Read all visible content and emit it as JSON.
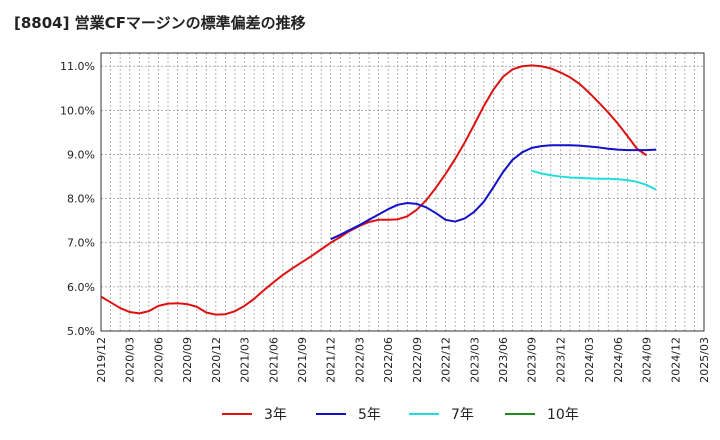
{
  "chart_data": {
    "type": "line",
    "title": "[8804]  営業CFマージンの標準偏差の推移",
    "xlabel": "",
    "ylabel": "",
    "x_ticks": [
      "2019/12",
      "2020/03",
      "2020/06",
      "2020/09",
      "2020/12",
      "2021/03",
      "2021/06",
      "2021/09",
      "2021/12",
      "2022/03",
      "2022/06",
      "2022/09",
      "2022/12",
      "2023/03",
      "2023/06",
      "2023/09",
      "2023/12",
      "2024/03",
      "2024/06",
      "2024/09",
      "2024/12",
      "2025/03"
    ],
    "y_ticks": [
      "5.0%",
      "6.0%",
      "7.0%",
      "8.0%",
      "9.0%",
      "10.0%",
      "11.0%"
    ],
    "ylim": [
      5.0,
      11.3
    ],
    "grid": true,
    "legend_position": "bottom",
    "x_unit": "month index from 2019/12",
    "series": [
      {
        "name": "3年",
        "color": "#dd1111",
        "points": [
          [
            0,
            5.78
          ],
          [
            1,
            5.65
          ],
          [
            2,
            5.52
          ],
          [
            3,
            5.43
          ],
          [
            4,
            5.4
          ],
          [
            5,
            5.45
          ],
          [
            6,
            5.57
          ],
          [
            7,
            5.62
          ],
          [
            8,
            5.63
          ],
          [
            9,
            5.61
          ],
          [
            10,
            5.55
          ],
          [
            11,
            5.42
          ],
          [
            12,
            5.37
          ],
          [
            13,
            5.38
          ],
          [
            14,
            5.45
          ],
          [
            15,
            5.57
          ],
          [
            16,
            5.73
          ],
          [
            17,
            5.92
          ],
          [
            18,
            6.1
          ],
          [
            19,
            6.27
          ],
          [
            20,
            6.42
          ],
          [
            21,
            6.56
          ],
          [
            22,
            6.7
          ],
          [
            23,
            6.85
          ],
          [
            24,
            7.0
          ],
          [
            25,
            7.13
          ],
          [
            26,
            7.27
          ],
          [
            27,
            7.38
          ],
          [
            28,
            7.47
          ],
          [
            29,
            7.52
          ],
          [
            30,
            7.52
          ],
          [
            31,
            7.53
          ],
          [
            32,
            7.6
          ],
          [
            33,
            7.75
          ],
          [
            34,
            7.97
          ],
          [
            35,
            8.25
          ],
          [
            36,
            8.56
          ],
          [
            37,
            8.9
          ],
          [
            38,
            9.27
          ],
          [
            39,
            9.68
          ],
          [
            40,
            10.1
          ],
          [
            41,
            10.47
          ],
          [
            42,
            10.76
          ],
          [
            43,
            10.93
          ],
          [
            44,
            11.0
          ],
          [
            45,
            11.02
          ],
          [
            46,
            11.0
          ],
          [
            47,
            10.95
          ],
          [
            48,
            10.86
          ],
          [
            49,
            10.75
          ],
          [
            50,
            10.6
          ],
          [
            51,
            10.4
          ],
          [
            52,
            10.18
          ],
          [
            53,
            9.95
          ],
          [
            54,
            9.7
          ],
          [
            55,
            9.42
          ],
          [
            56,
            9.13
          ],
          [
            57,
            8.98
          ]
        ]
      },
      {
        "name": "5年",
        "color": "#1111cc",
        "points": [
          [
            24,
            7.08
          ],
          [
            25,
            7.18
          ],
          [
            26,
            7.29
          ],
          [
            27,
            7.4
          ],
          [
            28,
            7.52
          ],
          [
            29,
            7.64
          ],
          [
            30,
            7.76
          ],
          [
            31,
            7.86
          ],
          [
            32,
            7.9
          ],
          [
            33,
            7.88
          ],
          [
            34,
            7.8
          ],
          [
            35,
            7.67
          ],
          [
            36,
            7.52
          ],
          [
            37,
            7.48
          ],
          [
            38,
            7.55
          ],
          [
            39,
            7.7
          ],
          [
            40,
            7.93
          ],
          [
            41,
            8.26
          ],
          [
            42,
            8.6
          ],
          [
            43,
            8.88
          ],
          [
            44,
            9.05
          ],
          [
            45,
            9.15
          ],
          [
            46,
            9.19
          ],
          [
            47,
            9.21
          ],
          [
            48,
            9.21
          ],
          [
            49,
            9.21
          ],
          [
            50,
            9.2
          ],
          [
            51,
            9.18
          ],
          [
            52,
            9.16
          ],
          [
            53,
            9.13
          ],
          [
            54,
            9.11
          ],
          [
            55,
            9.1
          ],
          [
            56,
            9.1
          ],
          [
            57,
            9.1
          ],
          [
            58,
            9.11
          ]
        ]
      },
      {
        "name": "7年",
        "color": "#22dddd",
        "points": [
          [
            45,
            8.63
          ],
          [
            46,
            8.57
          ],
          [
            47,
            8.53
          ],
          [
            48,
            8.5
          ],
          [
            49,
            8.48
          ],
          [
            50,
            8.47
          ],
          [
            51,
            8.46
          ],
          [
            52,
            8.45
          ],
          [
            53,
            8.45
          ],
          [
            54,
            8.44
          ],
          [
            55,
            8.42
          ],
          [
            56,
            8.38
          ],
          [
            57,
            8.31
          ],
          [
            58,
            8.2
          ]
        ]
      },
      {
        "name": "10年",
        "color": "#228822",
        "points": []
      }
    ]
  }
}
